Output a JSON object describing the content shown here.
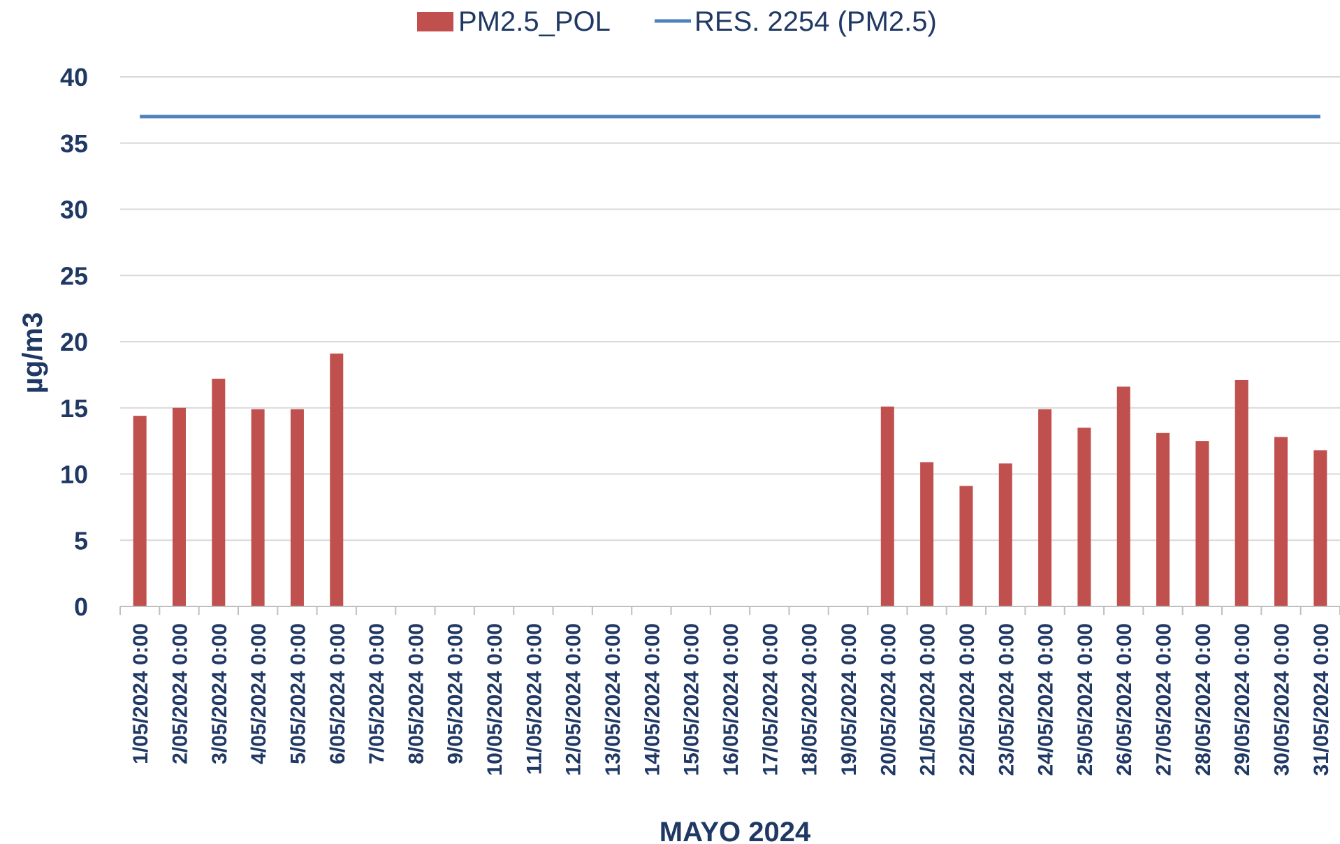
{
  "chart_data": {
    "type": "bar",
    "title": "",
    "xlabel": "MAYO 2024",
    "ylabel": "µg/m3",
    "ylim": [
      0,
      40
    ],
    "yticks": [
      0,
      5,
      10,
      15,
      20,
      25,
      30,
      35,
      40
    ],
    "grid": true,
    "legend_position": "top",
    "categories": [
      "1/05/2024 0:00",
      "2/05/2024 0:00",
      "3/05/2024 0:00",
      "4/05/2024 0:00",
      "5/05/2024 0:00",
      "6/05/2024 0:00",
      "7/05/2024 0:00",
      "8/05/2024 0:00",
      "9/05/2024 0:00",
      "10/05/2024 0:00",
      "11/05/2024 0:00",
      "12/05/2024 0:00",
      "13/05/2024 0:00",
      "14/05/2024 0:00",
      "15/05/2024 0:00",
      "16/05/2024 0:00",
      "17/05/2024 0:00",
      "18/05/2024 0:00",
      "19/05/2024 0:00",
      "20/05/2024 0:00",
      "21/05/2024 0:00",
      "22/05/2024 0:00",
      "23/05/2024 0:00",
      "24/05/2024 0:00",
      "25/05/2024 0:00",
      "26/05/2024 0:00",
      "27/05/2024 0:00",
      "28/05/2024 0:00",
      "29/05/2024 0:00",
      "30/05/2024 0:00",
      "31/05/2024 0:00"
    ],
    "series": [
      {
        "name": "PM2.5_POL",
        "type": "bar",
        "color": "#c0504d",
        "values": [
          14.4,
          15.0,
          17.2,
          14.9,
          14.9,
          19.1,
          null,
          null,
          null,
          null,
          null,
          null,
          null,
          null,
          null,
          null,
          null,
          null,
          null,
          15.1,
          10.9,
          9.1,
          10.8,
          14.9,
          13.5,
          16.6,
          13.1,
          12.5,
          17.1,
          12.8,
          11.8
        ]
      },
      {
        "name": "RES. 2254 (PM2.5)",
        "type": "line",
        "color": "#4f81bd",
        "values": [
          37,
          37,
          37,
          37,
          37,
          37,
          37,
          37,
          37,
          37,
          37,
          37,
          37,
          37,
          37,
          37,
          37,
          37,
          37,
          37,
          37,
          37,
          37,
          37,
          37,
          37,
          37,
          37,
          37,
          37,
          37
        ]
      }
    ]
  }
}
